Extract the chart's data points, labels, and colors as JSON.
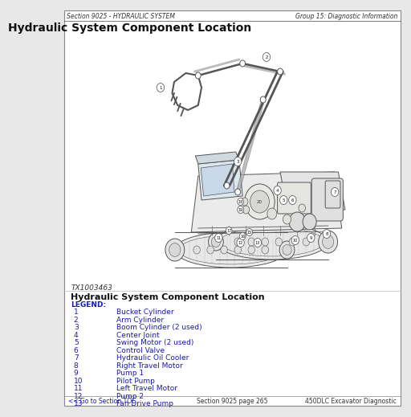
{
  "bg_color": "#ffffff",
  "outer_bg": "#e8e8e8",
  "border_color": "#999999",
  "header_left": "Section 9025 - HYDRAULIC SYSTEM",
  "header_right": "Group 15: Diagnostic Information",
  "title": "Hydraulic System Component Location",
  "image_label": "TX1003463",
  "section_subtitle": "Hydraulic System Component Location",
  "legend_title": "LEGEND:",
  "legend_color": "#1a1aaa",
  "text_color": "#222222",
  "draw_color": "#555555",
  "legend_items": [
    [
      "1",
      "Bucket Cylinder"
    ],
    [
      "2",
      "Arm Cylinder"
    ],
    [
      "3",
      "Boom Cylinder (2 used)"
    ],
    [
      "4",
      "Center Joint"
    ],
    [
      "5",
      "Swing Motor (2 used)"
    ],
    [
      "6",
      "Control Valve"
    ],
    [
      "7",
      "Hydraulic Oil Cooler"
    ],
    [
      "8",
      "Right Travel Motor"
    ],
    [
      "9",
      "Pump 1"
    ],
    [
      "10",
      "Pilot Pump"
    ],
    [
      "11",
      "Left Travel Motor"
    ],
    [
      "12",
      "Pump 2"
    ],
    [
      "13",
      "Fan Drive Pump"
    ]
  ],
  "footer_left": "<< Go to Section TOC",
  "footer_center": "Section 9025 page 265",
  "footer_right": "450DLC Excavator Diagnostic",
  "header_fontsize": 5.5,
  "title_fontsize": 10,
  "label_fontsize": 6,
  "legend_fontsize": 6.5,
  "footer_fontsize": 5.5
}
